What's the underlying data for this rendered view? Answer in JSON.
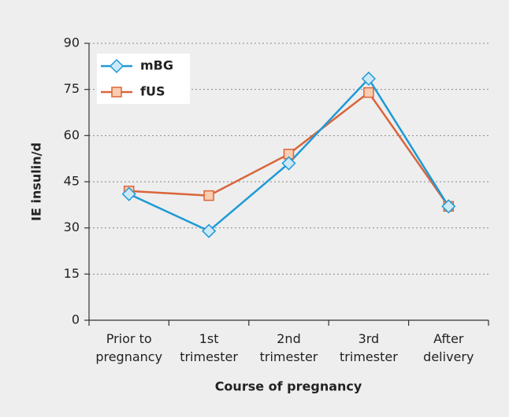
{
  "chart_data": {
    "type": "line",
    "x_label": "Course of pregnancy",
    "y_label": "IE insulin/d",
    "categories": [
      "Prior to\npregnancy",
      "1st\ntrimester",
      "2nd\ntrimester",
      "3rd\ntrimester",
      "After\ndelivery"
    ],
    "series": [
      {
        "name": "mBG",
        "color": "#1e9ad6",
        "marker": "diamond",
        "marker_fill": "#cde9f7",
        "values": [
          41,
          29,
          51,
          78.5,
          37
        ]
      },
      {
        "name": "fUS",
        "color": "#d9653b",
        "marker": "square",
        "marker_fill": "#fbcdb0",
        "values": [
          42,
          40.5,
          54,
          74,
          37
        ]
      }
    ],
    "ylim": [
      0,
      90
    ],
    "yticks": [
      0,
      15,
      30,
      45,
      60,
      75,
      90
    ],
    "grid": true,
    "legend": "upper left"
  }
}
